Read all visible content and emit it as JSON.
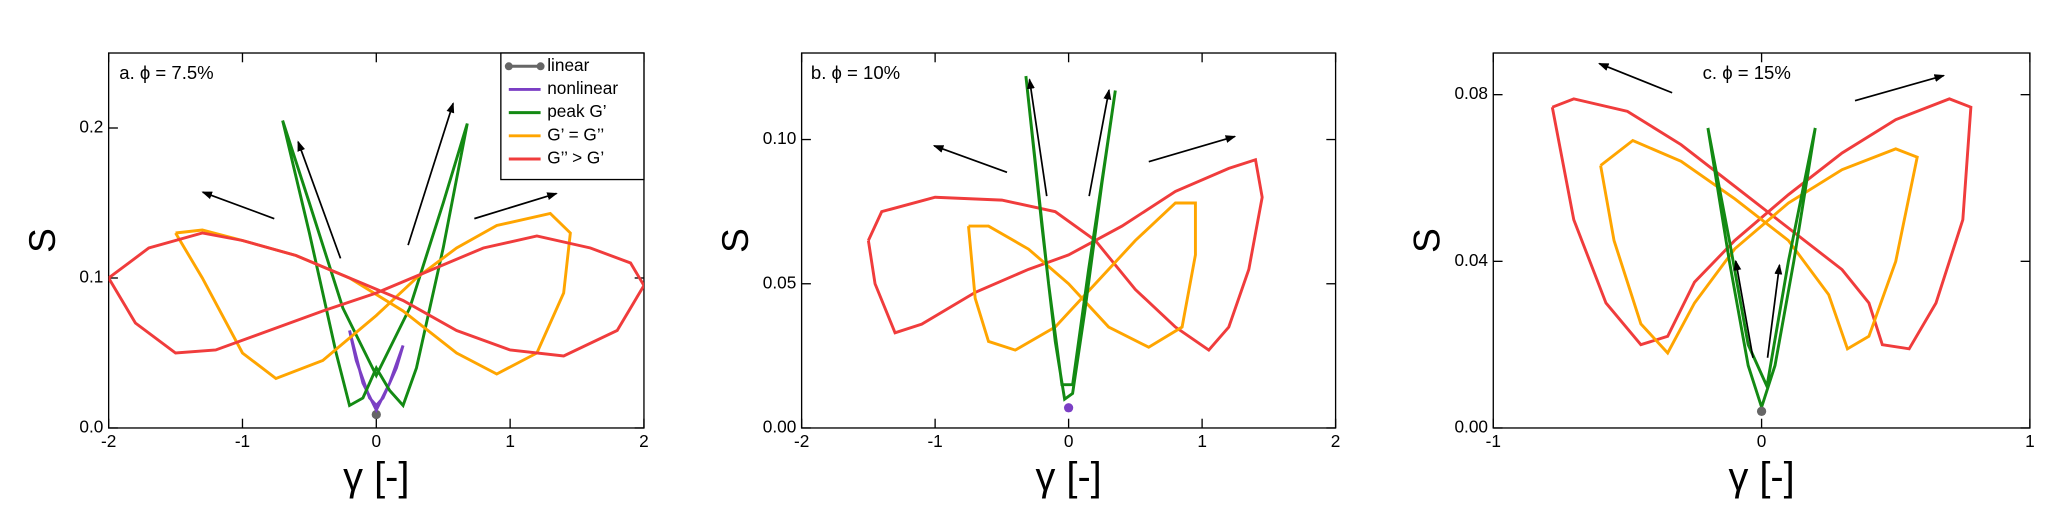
{
  "chart_data": [
    {
      "type": "line",
      "title": "a. ϕ = 7.5%",
      "xlabel": "γ [-]",
      "ylabel": "S",
      "xlim": [
        -2,
        2
      ],
      "ylim": [
        0,
        0.25
      ],
      "xticks": [
        -2,
        -1,
        0,
        1,
        2
      ],
      "yticks": [
        {
          "value": 0,
          "label": "0.0"
        },
        0.1,
        0.2
      ],
      "legend": "upper right",
      "series": [
        {
          "name": "linear",
          "color": "#666666",
          "marker": "o",
          "x": [
            0
          ],
          "values": [
            0.009
          ]
        },
        {
          "name": "nonlinear",
          "color": "#7b3fc4",
          "x": [
            -0.2,
            -0.1,
            0,
            0.1,
            0.2,
            0.15,
            0.05,
            0,
            -0.05,
            -0.15,
            -0.2
          ],
          "values": [
            0.065,
            0.03,
            0.012,
            0.03,
            0.055,
            0.04,
            0.02,
            0.015,
            0.02,
            0.045,
            0.065
          ]
        },
        {
          "name": "peak G’",
          "color": "#138a13",
          "x": [
            -0.7,
            -0.5,
            -0.3,
            -0.2,
            -0.1,
            0,
            0.1,
            0.2,
            0.3,
            0.5,
            0.68,
            0.5,
            0.25,
            0,
            -0.25,
            -0.5,
            -0.7
          ],
          "values": [
            0.205,
            0.13,
            0.05,
            0.015,
            0.02,
            0.04,
            0.025,
            0.015,
            0.04,
            0.12,
            0.203,
            0.15,
            0.08,
            0.035,
            0.08,
            0.15,
            0.205
          ]
        },
        {
          "name": "G’ = G’’",
          "color": "#ffa500",
          "x": [
            -1.5,
            -1.3,
            -1.0,
            -0.75,
            -0.4,
            0,
            0.3,
            0.6,
            0.9,
            1.3,
            1.45,
            1.4,
            1.2,
            0.9,
            0.6,
            0.2,
            -0.2,
            -0.6,
            -1.0,
            -1.3,
            -1.5
          ],
          "values": [
            0.13,
            0.1,
            0.05,
            0.033,
            0.045,
            0.075,
            0.1,
            0.12,
            0.135,
            0.143,
            0.13,
            0.09,
            0.05,
            0.036,
            0.05,
            0.078,
            0.1,
            0.115,
            0.125,
            0.132,
            0.13
          ]
        },
        {
          "name": "G’’ > G’",
          "color": "#f03c3c",
          "x": [
            -2,
            -1.8,
            -1.5,
            -1.2,
            -0.8,
            -0.4,
            0,
            0.4,
            0.8,
            1.2,
            1.6,
            1.9,
            2,
            1.8,
            1.4,
            1.0,
            0.6,
            0.2,
            -0.2,
            -0.6,
            -1.0,
            -1.3,
            -1.7,
            -2
          ],
          "values": [
            0.1,
            0.07,
            0.05,
            0.052,
            0.065,
            0.078,
            0.09,
            0.105,
            0.12,
            0.128,
            0.12,
            0.11,
            0.095,
            0.065,
            0.048,
            0.052,
            0.065,
            0.085,
            0.1,
            0.115,
            0.125,
            0.13,
            0.12,
            0.1
          ]
        }
      ]
    },
    {
      "type": "line",
      "title": "b. ϕ = 10%",
      "xlabel": "γ [-]",
      "ylabel": "S",
      "xlim": [
        -2,
        2
      ],
      "ylim": [
        0,
        0.13
      ],
      "xticks": [
        -2,
        -1,
        0,
        1,
        2
      ],
      "yticks": [
        {
          "value": 0,
          "label": "0.00"
        },
        0.05,
        {
          "value": 0.1,
          "label": "0.10"
        }
      ],
      "series": [
        {
          "color": "#f03c3c",
          "x": [
            -1.5,
            -1.45,
            -1.3,
            -1.1,
            -0.7,
            -0.3,
            0,
            0.4,
            0.8,
            1.2,
            1.4,
            1.45,
            1.35,
            1.2,
            1.05,
            0.8,
            0.5,
            0.2,
            -0.1,
            -0.5,
            -1.0,
            -1.4,
            -1.5
          ],
          "values": [
            0.065,
            0.05,
            0.033,
            0.036,
            0.047,
            0.055,
            0.06,
            0.07,
            0.082,
            0.09,
            0.093,
            0.08,
            0.055,
            0.035,
            0.027,
            0.035,
            0.048,
            0.065,
            0.075,
            0.079,
            0.08,
            0.075,
            0.065
          ]
        },
        {
          "color": "#ffa500",
          "x": [
            -0.75,
            -0.7,
            -0.6,
            -0.4,
            -0.1,
            0.2,
            0.5,
            0.8,
            0.95,
            0.95,
            0.85,
            0.6,
            0.3,
            0,
            -0.3,
            -0.6,
            -0.75
          ],
          "values": [
            0.07,
            0.045,
            0.03,
            0.027,
            0.035,
            0.05,
            0.065,
            0.078,
            0.078,
            0.06,
            0.035,
            0.028,
            0.035,
            0.05,
            0.062,
            0.07,
            0.07
          ]
        },
        {
          "color": "#138a13",
          "x": [
            -0.32,
            -0.2,
            -0.1,
            -0.03,
            0.03,
            0.12,
            0.25,
            0.35,
            0.28,
            0.15,
            0.03,
            -0.05,
            -0.15,
            -0.32
          ],
          "values": [
            0.122,
            0.07,
            0.03,
            0.01,
            0.012,
            0.04,
            0.085,
            0.117,
            0.095,
            0.055,
            0.015,
            0.015,
            0.05,
            0.122
          ]
        },
        {
          "color": "#7b3fc4",
          "marker": "o",
          "x": [
            0
          ],
          "values": [
            0.007
          ]
        }
      ]
    },
    {
      "type": "line",
      "title": "c. ϕ = 15%",
      "xlabel": "γ [-]",
      "ylabel": "S",
      "xlim": [
        -1,
        1
      ],
      "ylim": [
        0,
        0.09
      ],
      "xticks": [
        -1,
        0,
        1
      ],
      "yticks": [
        {
          "value": 0,
          "label": "0.00"
        },
        0.04,
        0.08
      ],
      "series": [
        {
          "color": "#f03c3c",
          "x": [
            -0.78,
            -0.7,
            -0.5,
            -0.3,
            -0.1,
            0.1,
            0.3,
            0.4,
            0.45,
            0.55,
            0.65,
            0.75,
            0.78,
            0.7,
            0.5,
            0.3,
            0.1,
            -0.1,
            -0.25,
            -0.35,
            -0.45,
            -0.58,
            -0.7,
            -0.78
          ],
          "values": [
            0.077,
            0.079,
            0.076,
            0.068,
            0.058,
            0.048,
            0.038,
            0.03,
            0.02,
            0.019,
            0.03,
            0.05,
            0.077,
            0.079,
            0.074,
            0.066,
            0.056,
            0.045,
            0.035,
            0.022,
            0.02,
            0.03,
            0.05,
            0.077
          ]
        },
        {
          "color": "#ffa500",
          "x": [
            -0.6,
            -0.48,
            -0.3,
            -0.1,
            0.1,
            0.25,
            0.32,
            0.4,
            0.5,
            0.58,
            0.5,
            0.3,
            0.1,
            -0.1,
            -0.25,
            -0.35,
            -0.45,
            -0.55,
            -0.6
          ],
          "values": [
            0.063,
            0.069,
            0.064,
            0.055,
            0.045,
            0.032,
            0.019,
            0.022,
            0.04,
            0.065,
            0.067,
            0.062,
            0.054,
            0.043,
            0.03,
            0.018,
            0.025,
            0.045,
            0.063
          ]
        },
        {
          "color": "#138a13",
          "x": [
            -0.2,
            -0.12,
            -0.05,
            0,
            0.05,
            0.12,
            0.2,
            0.1,
            0.02,
            -0.05,
            -0.12,
            -0.2
          ],
          "values": [
            0.072,
            0.04,
            0.015,
            0.005,
            0.015,
            0.04,
            0.072,
            0.04,
            0.01,
            0.02,
            0.045,
            0.072
          ]
        },
        {
          "color": "#666666",
          "marker": "o",
          "x": [
            0
          ],
          "values": [
            0.004
          ]
        }
      ]
    }
  ]
}
